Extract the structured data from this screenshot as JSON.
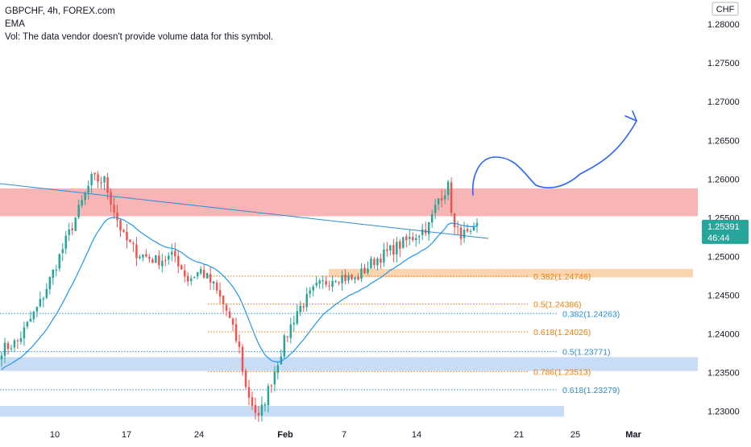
{
  "header": {
    "symbol_line": "GBPCHF, 4h, FOREX.com",
    "indicator": "EMA",
    "volume_note": "Vol: The data vendor doesn't provide volume data for this symbol."
  },
  "price_axis": {
    "currency": "CHF",
    "ticks": [
      "1.28000",
      "1.27500",
      "1.27000",
      "1.26500",
      "1.26000",
      "1.25500",
      "1.25000",
      "1.24500",
      "1.24000",
      "1.23500",
      "1.23000"
    ],
    "current_price": "1.25391",
    "countdown": "46:44"
  },
  "time_axis": {
    "ticks": [
      "10",
      "17",
      "24",
      "Feb",
      "7",
      "14",
      "21",
      "25",
      "Mar"
    ]
  },
  "fib_levels": [
    {
      "label": "0.382(1.24746)",
      "value": 1.24746,
      "color": "#f57c00"
    },
    {
      "label": "0.5(1.24386)",
      "value": 1.24386,
      "color": "#f57c00"
    },
    {
      "label": "0.382(1.24263)",
      "value": 1.24263,
      "color": "#2a8bd8"
    },
    {
      "label": "0.618(1.24026)",
      "value": 1.24026,
      "color": "#f57c00"
    },
    {
      "label": "0.5(1.23771)",
      "value": 1.23771,
      "color": "#2a8bd8"
    },
    {
      "label": "0.786(1.23513)",
      "value": 1.23513,
      "color": "#f57c00"
    },
    {
      "label": "0.618(1.23279)",
      "value": 1.23279,
      "color": "#2a8bd8"
    }
  ],
  "colors": {
    "up": "#26a69a",
    "down": "#ef5350",
    "ema": "#2196f3",
    "trendline": "#2a8bd8",
    "resistance_zone": "#f7a8a8",
    "support_zone": "#c8dcf5",
    "orange_zone": "#fbd5b0",
    "price_badge": "#26a69a",
    "axis_text": "#131722"
  },
  "chart_data": {
    "type": "candlestick",
    "symbol": "GBPCHF",
    "timeframe": "4h",
    "ylim": [
      1.2283,
      1.2822
    ],
    "price_ticks": [
      1.28,
      1.275,
      1.27,
      1.265,
      1.26,
      1.255,
      1.25,
      1.245,
      1.24,
      1.235,
      1.23
    ],
    "current_price": 1.25391,
    "resistance_zone": [
      1.2552,
      1.2588
    ],
    "support_zones": [
      [
        1.2352,
        1.237
      ],
      [
        1.2293,
        1.2307
      ]
    ],
    "orange_zone": [
      1.2473,
      1.2484
    ],
    "candle_count": 149,
    "anchors": [
      [
        0,
        1.238
      ],
      [
        5,
        1.239
      ],
      [
        12,
        1.244
      ],
      [
        18,
        1.25
      ],
      [
        22,
        1.254
      ],
      [
        28,
        1.26
      ],
      [
        32,
        1.2598
      ],
      [
        35,
        1.256
      ],
      [
        38,
        1.2525
      ],
      [
        42,
        1.2505
      ],
      [
        48,
        1.2495
      ],
      [
        54,
        1.25
      ],
      [
        58,
        1.247
      ],
      [
        62,
        1.2482
      ],
      [
        66,
        1.2462
      ],
      [
        70,
        1.243
      ],
      [
        74,
        1.238
      ],
      [
        76,
        1.233
      ],
      [
        80,
        1.229
      ],
      [
        84,
        1.234
      ],
      [
        88,
        1.239
      ],
      [
        92,
        1.243
      ],
      [
        98,
        1.246
      ],
      [
        104,
        1.2475
      ],
      [
        110,
        1.247
      ],
      [
        116,
        1.2495
      ],
      [
        122,
        1.251
      ],
      [
        128,
        1.2525
      ],
      [
        133,
        1.254
      ],
      [
        136,
        1.2575
      ],
      [
        139,
        1.259
      ],
      [
        141,
        1.2535
      ],
      [
        143,
        1.253
      ],
      [
        146,
        1.2525
      ],
      [
        148,
        1.2539
      ]
    ]
  }
}
